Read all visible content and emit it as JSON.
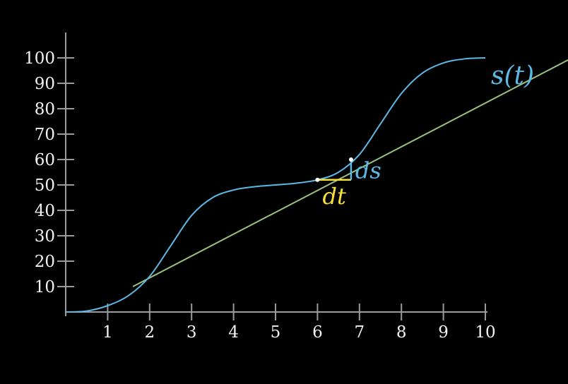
{
  "chart_data": {
    "type": "line",
    "title": "",
    "xlabel": "",
    "ylabel": "",
    "xlim": [
      0,
      10
    ],
    "ylim": [
      0,
      100
    ],
    "grid": false,
    "x_ticks": [
      1,
      2,
      3,
      4,
      5,
      6,
      7,
      8,
      9,
      10
    ],
    "y_ticks": [
      10,
      20,
      30,
      40,
      50,
      60,
      70,
      80,
      90,
      100
    ],
    "x_tick_labels": [
      "1",
      "2",
      "3",
      "4",
      "5",
      "6",
      "7",
      "8",
      "9",
      "10"
    ],
    "y_tick_labels": [
      "10",
      "20",
      "30",
      "40",
      "50",
      "60",
      "70",
      "80",
      "90",
      "100"
    ],
    "series": [
      {
        "name": "s(t)",
        "color": "#5db8e4",
        "x": [
          0,
          0.5,
          1,
          1.5,
          2,
          2.5,
          3,
          3.5,
          4,
          4.5,
          5,
          5.5,
          6,
          6.5,
          7,
          7.5,
          8,
          8.5,
          9,
          9.5,
          10
        ],
        "y": [
          0,
          0.4,
          2.5,
          6.5,
          14,
          26,
          38,
          45,
          48,
          49.3,
          50,
          50.7,
          52,
          55,
          62,
          74,
          86,
          94,
          98,
          99.6,
          100
        ]
      },
      {
        "name": "",
        "color": "#9bc17e",
        "x": [
          1.6,
          12.3
        ],
        "y": [
          10,
          102
        ]
      }
    ],
    "annotations": {
      "series_label": "s(t)",
      "dt_label": "dt",
      "ds_label": "ds",
      "dt_color": "#f5e03a",
      "ds_color": "#5db8e4",
      "point_color": "#ffffff",
      "dt_start": [
        6,
        52
      ],
      "dt_end": [
        6.8,
        52
      ],
      "ds_top": [
        6.8,
        60
      ]
    }
  }
}
